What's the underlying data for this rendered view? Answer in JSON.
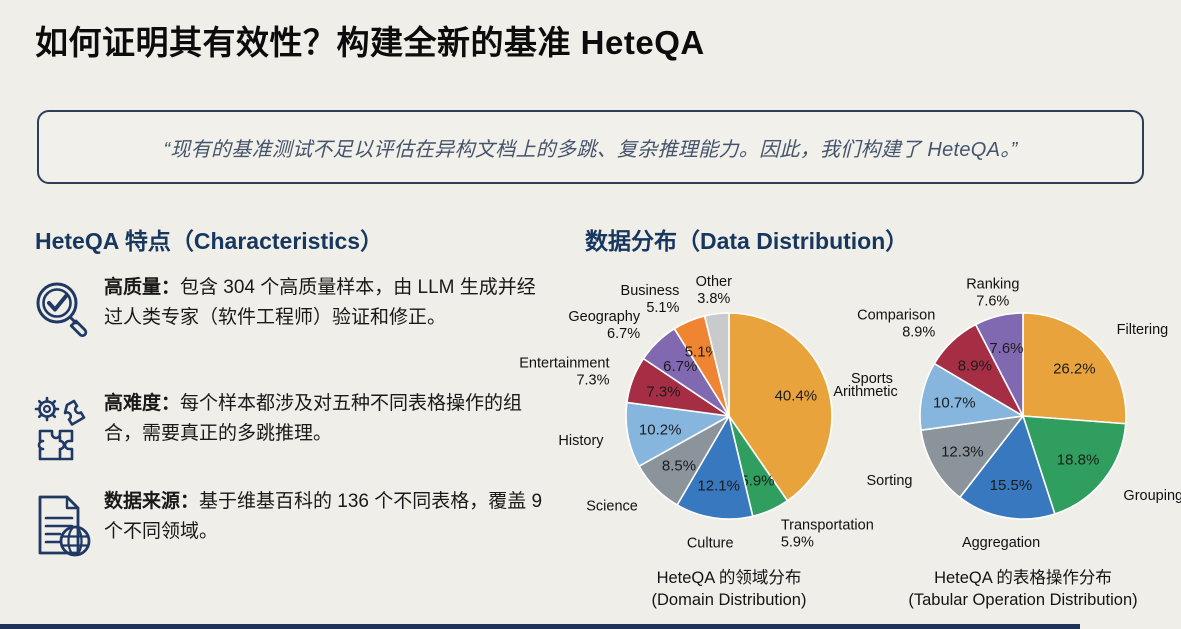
{
  "page": {
    "title": "如何证明其有效性？构建全新的基准 HeteQA",
    "quote": "“现有的基准测试不足以评估在异构文档上的多跳、复杂推理能力。因此，我们构建了 HeteQA。”"
  },
  "features": {
    "heading": "HeteQA 特点（Characteristics）",
    "items": [
      {
        "icon": "magnifier-check-icon",
        "term": "高质量：",
        "desc": "包含 304 个高质量样本，由 LLM 生成并经过人类专家（软件工程师）验证和修正。"
      },
      {
        "icon": "gear-puzzle-icon",
        "term": "高难度：",
        "desc": "每个样本都涉及对五种不同表格操作的组合，需要真正的多跳推理。"
      },
      {
        "icon": "document-globe-icon",
        "term": "数据来源：",
        "desc": "基于维基百科的 136 个不同表格，覆盖 9 个不同领域。"
      }
    ]
  },
  "distribution": {
    "heading": "数据分布（Data Distribution）"
  },
  "colors": {
    "background": "#EFEEE9",
    "heading_navy": "#17375E",
    "quote_border": "#2E3D5A",
    "quote_text": "#45546A",
    "bottom_bar": "#1E3357",
    "pie_palette": [
      "#E8A33D",
      "#2F9E5F",
      "#3778BE",
      "#8B939B",
      "#86B6DE",
      "#A52E45",
      "#8169B2",
      "#EF8532",
      "#C8CACC"
    ]
  },
  "chart_data": [
    {
      "type": "pie",
      "name": "domain-distribution",
      "caption_zh": "HeteQA 的领域分布",
      "caption_en": "(Domain Distribution)",
      "start_angle_deg_from_top": 0,
      "direction": "clockwise",
      "slices": [
        {
          "label": "Sports",
          "pct": 40.4,
          "color": "#E8A33D",
          "inner": "40.4%",
          "outer": [
            "Sports"
          ]
        },
        {
          "label": "Transportation",
          "pct": 5.9,
          "color": "#2F9E5F",
          "inner": "5.9%",
          "outer": [
            "Transportation",
            "5.9%"
          ]
        },
        {
          "label": "Culture",
          "pct": 12.1,
          "color": "#3778BE",
          "inner": "12.1%",
          "outer": [
            "Culture"
          ]
        },
        {
          "label": "Science",
          "pct": 8.5,
          "color": "#8B939B",
          "inner": "8.5%",
          "outer": [
            "Science"
          ]
        },
        {
          "label": "History",
          "pct": 10.2,
          "color": "#86B6DE",
          "inner": "10.2%",
          "outer": [
            "History"
          ]
        },
        {
          "label": "Entertainment",
          "pct": 7.3,
          "color": "#A52E45",
          "inner": "7.3%",
          "outer": [
            "Entertainment",
            "7.3%"
          ]
        },
        {
          "label": "Geography",
          "pct": 6.7,
          "color": "#8169B2",
          "inner": "6.7%",
          "outer": [
            "Geography",
            "6.7%"
          ]
        },
        {
          "label": "Business",
          "pct": 5.1,
          "color": "#EF8532",
          "inner": "5.1%",
          "outer": [
            "Business",
            "5.1%"
          ]
        },
        {
          "label": "Other",
          "pct": 3.8,
          "color": "#C8CACC",
          "inner": "",
          "outer": [
            "Other",
            "3.8%"
          ]
        }
      ]
    },
    {
      "type": "pie",
      "name": "tabular-operation-distribution",
      "caption_zh": "HeteQA 的表格操作分布",
      "caption_en": "(Tabular Operation Distribution)",
      "start_angle_deg_from_top": 0,
      "direction": "clockwise",
      "slices": [
        {
          "label": "Filtering",
          "pct": 26.2,
          "color": "#E8A33D",
          "inner": "26.2%",
          "outer": [
            "Filtering"
          ]
        },
        {
          "label": "Grouping",
          "pct": 18.8,
          "color": "#2F9E5F",
          "inner": "18.8%",
          "outer": [
            "Grouping"
          ]
        },
        {
          "label": "Aggregation",
          "pct": 15.5,
          "color": "#3778BE",
          "inner": "15.5%",
          "outer": [
            "Aggregation"
          ]
        },
        {
          "label": "Sorting",
          "pct": 12.3,
          "color": "#8B939B",
          "inner": "12.3%",
          "outer": [
            "Sorting"
          ]
        },
        {
          "label": "Arithmetic",
          "pct": 10.7,
          "color": "#86B6DE",
          "inner": "10.7%",
          "outer": [
            "Arithmetic"
          ]
        },
        {
          "label": "Comparison",
          "pct": 8.9,
          "color": "#A52E45",
          "inner": "8.9%",
          "outer": [
            "Comparison",
            "8.9%"
          ]
        },
        {
          "label": "Ranking",
          "pct": 7.6,
          "color": "#8169B2",
          "inner": "7.6%",
          "outer": [
            "Ranking",
            "7.6%"
          ]
        }
      ]
    }
  ]
}
